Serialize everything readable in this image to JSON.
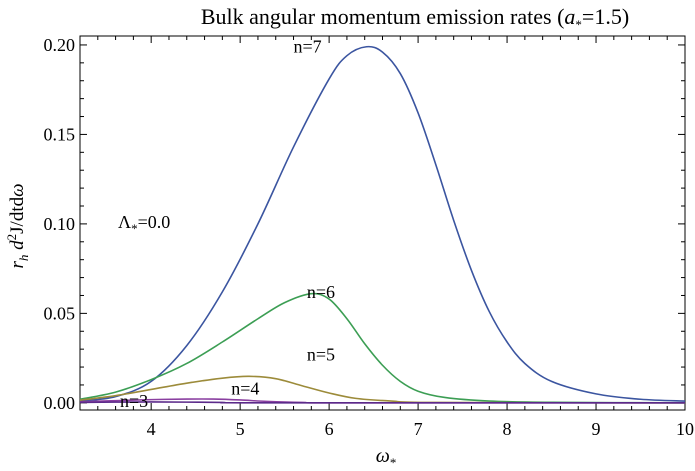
{
  "chart_data": {
    "type": "line",
    "title_text": "Bulk angular momentum emission rates (",
    "title_param": "a",
    "title_param_sub": "*",
    "title_value": "=1.5)",
    "ylabel_parts": {
      "r": "r",
      "r_sub": "h",
      "d": " d",
      "sup": "2",
      "rest": "J/dtd",
      "omega": "ω"
    },
    "xlabel_parts": {
      "omega": "ω",
      "sub": "*"
    },
    "annotation": {
      "lambda": "Λ",
      "sub": "*",
      "value": "=0.0"
    },
    "xlim": [
      3.2,
      10.0
    ],
    "ylim": [
      -0.004,
      0.205
    ],
    "xticks": [
      4,
      5,
      6,
      7,
      8,
      9,
      10
    ],
    "xtick_labels": [
      "4",
      "5",
      "6",
      "7",
      "8",
      "9",
      "10"
    ],
    "yticks": [
      0.0,
      0.05,
      0.1,
      0.15,
      0.2
    ],
    "ytick_labels": [
      "0.00",
      "0.05",
      "0.10",
      "0.15",
      "0.20"
    ],
    "grid": false,
    "series": [
      {
        "name": "n=7",
        "color": "#3b55a0",
        "points": [
          [
            3.2,
            0.001
          ],
          [
            3.6,
            0.0035
          ],
          [
            4.0,
            0.012
          ],
          [
            4.4,
            0.032
          ],
          [
            4.8,
            0.062
          ],
          [
            5.2,
            0.1
          ],
          [
            5.6,
            0.143
          ],
          [
            6.0,
            0.181
          ],
          [
            6.2,
            0.194
          ],
          [
            6.42,
            0.199
          ],
          [
            6.6,
            0.196
          ],
          [
            6.8,
            0.184
          ],
          [
            7.0,
            0.162
          ],
          [
            7.2,
            0.133
          ],
          [
            7.4,
            0.102
          ],
          [
            7.6,
            0.074
          ],
          [
            7.8,
            0.051
          ],
          [
            8.0,
            0.034
          ],
          [
            8.2,
            0.022
          ],
          [
            8.5,
            0.012
          ],
          [
            9.0,
            0.005
          ],
          [
            9.5,
            0.002
          ],
          [
            10.0,
            0.001
          ]
        ],
        "label_pos": [
          5.6,
          0.199
        ]
      },
      {
        "name": "n=6",
        "color": "#3c9e54",
        "points": [
          [
            3.2,
            0.002
          ],
          [
            3.6,
            0.006
          ],
          [
            4.0,
            0.013
          ],
          [
            4.4,
            0.022
          ],
          [
            4.8,
            0.034
          ],
          [
            5.2,
            0.047
          ],
          [
            5.5,
            0.056
          ],
          [
            5.8,
            0.061
          ],
          [
            6.0,
            0.058
          ],
          [
            6.2,
            0.047
          ],
          [
            6.4,
            0.033
          ],
          [
            6.6,
            0.021
          ],
          [
            6.8,
            0.012
          ],
          [
            7.0,
            0.0065
          ],
          [
            7.3,
            0.003
          ],
          [
            7.8,
            0.001
          ],
          [
            8.5,
            0.0003
          ],
          [
            10.0,
            0.0
          ]
        ],
        "label_pos": [
          5.75,
          0.062
        ]
      },
      {
        "name": "n=5",
        "color": "#9c8b3a",
        "points": [
          [
            3.2,
            0.0015
          ],
          [
            3.6,
            0.004
          ],
          [
            4.0,
            0.0075
          ],
          [
            4.4,
            0.011
          ],
          [
            4.8,
            0.0138
          ],
          [
            5.1,
            0.0148
          ],
          [
            5.4,
            0.0135
          ],
          [
            5.7,
            0.0095
          ],
          [
            6.0,
            0.0055
          ],
          [
            6.3,
            0.0025
          ],
          [
            6.7,
            0.001
          ],
          [
            7.2,
            0.0002
          ],
          [
            10.0,
            0.0
          ]
        ],
        "label_pos": [
          5.75,
          0.027
        ]
      },
      {
        "name": "n=4",
        "color": "#8a3fa0",
        "points": [
          [
            3.2,
            0.0006
          ],
          [
            3.6,
            0.0012
          ],
          [
            4.0,
            0.0018
          ],
          [
            4.4,
            0.0021
          ],
          [
            4.7,
            0.0021
          ],
          [
            5.0,
            0.0016
          ],
          [
            5.3,
            0.0008
          ],
          [
            5.7,
            0.0002
          ],
          [
            6.2,
            0.0
          ],
          [
            10.0,
            0.0
          ]
        ],
        "label_pos": [
          4.9,
          0.008
        ]
      },
      {
        "name": "n=3",
        "color": "#5b2a8a",
        "points": [
          [
            3.2,
            0.0002
          ],
          [
            3.6,
            0.0004
          ],
          [
            4.0,
            0.0005
          ],
          [
            4.4,
            0.0004
          ],
          [
            4.8,
            0.0002
          ],
          [
            5.3,
            0.0
          ],
          [
            10.0,
            0.0
          ]
        ],
        "label_pos": [
          3.65,
          0.001
        ]
      }
    ]
  }
}
